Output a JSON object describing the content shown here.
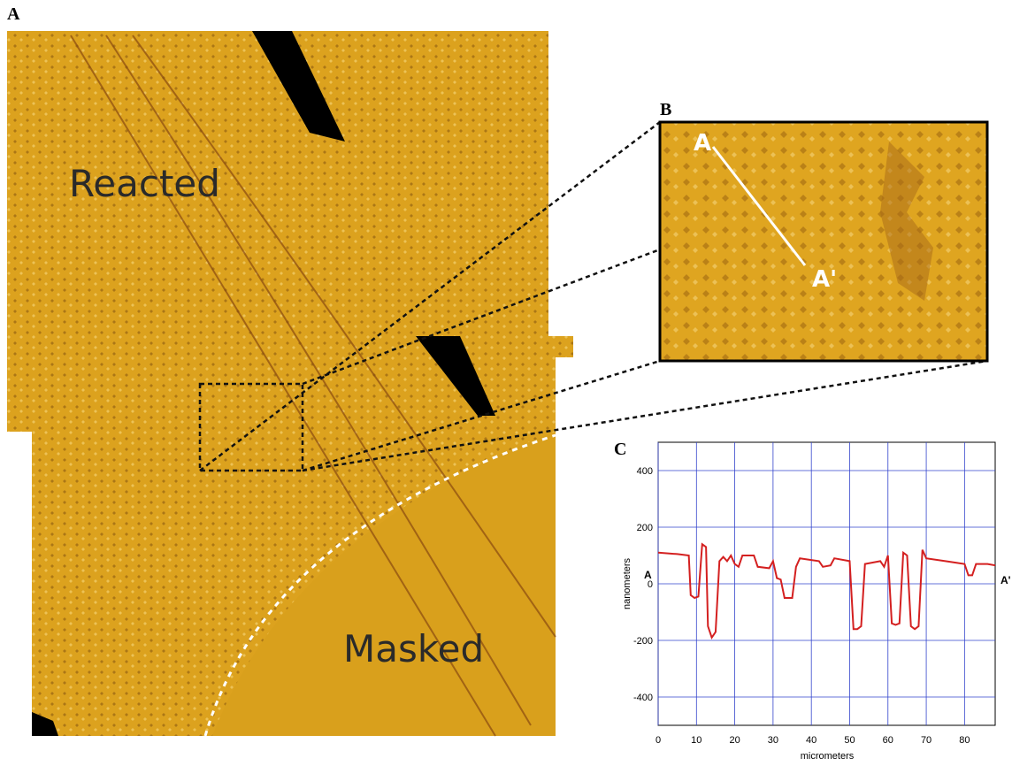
{
  "figure": {
    "panel_a": {
      "label": "A",
      "regions": [
        "Reacted",
        "Masked"
      ]
    },
    "panel_b": {
      "label": "B",
      "markers": [
        "A",
        "A'"
      ]
    },
    "panel_c": {
      "label": "C"
    }
  },
  "chart_data": {
    "type": "line",
    "xlabel": "micrometers",
    "ylabel": "nanometers",
    "annotations": [
      "A",
      "A'"
    ],
    "x": [
      0,
      5,
      8,
      8.5,
      9.5,
      10.5,
      11.5,
      12.5,
      13,
      14,
      15,
      16,
      17,
      18,
      19,
      20,
      21,
      22,
      25,
      26,
      29,
      30,
      31,
      32,
      33,
      35,
      36,
      37,
      42,
      43,
      45,
      46,
      50,
      51,
      52,
      53,
      54,
      58,
      59,
      60,
      61,
      62,
      63,
      64,
      65,
      66,
      67,
      68,
      69,
      70,
      75,
      80,
      81,
      82,
      83,
      86,
      88
    ],
    "values": [
      110,
      105,
      100,
      -40,
      -50,
      -45,
      140,
      130,
      -150,
      -190,
      -170,
      80,
      95,
      80,
      100,
      70,
      60,
      100,
      100,
      60,
      55,
      80,
      20,
      15,
      -50,
      -50,
      60,
      90,
      80,
      60,
      65,
      90,
      80,
      -160,
      -160,
      -150,
      70,
      80,
      60,
      100,
      -140,
      -145,
      -140,
      110,
      100,
      -150,
      -160,
      -150,
      120,
      90,
      80,
      70,
      30,
      30,
      70,
      70,
      65
    ],
    "color": "#d42020",
    "xlim": [
      0,
      88
    ],
    "ylim": [
      -500,
      500
    ],
    "xticks": [
      0,
      10,
      20,
      30,
      40,
      50,
      60,
      70,
      80
    ],
    "yticks": [
      -400,
      -200,
      0,
      200,
      400
    ],
    "grid": true,
    "grid_color": "#3344cc"
  }
}
